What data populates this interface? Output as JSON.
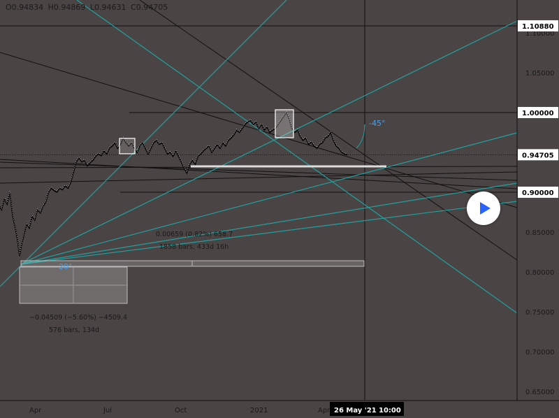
{
  "ohlc": {
    "o": "O0.94834",
    "h": "H0.94869",
    "l": "L0.94631",
    "c": "C0.94705"
  },
  "chart_data": {
    "type": "line",
    "price_range": [
      0.63,
      1.13
    ],
    "y_ticks": [
      "1.10000",
      "1.05000",
      "1.00000",
      "0.95000",
      "0.90000",
      "0.85000",
      "0.80000",
      "0.75000",
      "0.70000",
      "0.65000"
    ],
    "x_ticks": [
      "Apr",
      "Jul",
      "Oct",
      "2021",
      "Apr"
    ],
    "highlighted_prices": [
      {
        "label": "1.10880",
        "value": 1.1088,
        "style": "dark"
      },
      {
        "label": "1.00000",
        "value": 1.0,
        "style": "dark"
      },
      {
        "label": "0.94705",
        "value": 0.94705,
        "style": "dark"
      },
      {
        "label": "0.90000",
        "value": 0.9,
        "style": "dark"
      }
    ],
    "crosshair_time": "26 May '21",
    "crosshair_hour": "10:00",
    "price_series": [
      [
        0,
        0.885
      ],
      [
        4,
        0.878
      ],
      [
        8,
        0.892
      ],
      [
        12,
        0.885
      ],
      [
        16,
        0.9
      ],
      [
        20,
        0.87
      ],
      [
        24,
        0.855
      ],
      [
        27,
        0.84
      ],
      [
        30,
        0.82
      ],
      [
        33,
        0.835
      ],
      [
        36,
        0.845
      ],
      [
        40,
        0.86
      ],
      [
        44,
        0.855
      ],
      [
        48,
        0.87
      ],
      [
        52,
        0.865
      ],
      [
        56,
        0.878
      ],
      [
        60,
        0.874
      ],
      [
        64,
        0.882
      ],
      [
        68,
        0.888
      ],
      [
        72,
        0.9
      ],
      [
        76,
        0.905
      ],
      [
        80,
        0.902
      ],
      [
        84,
        0.9
      ],
      [
        88,
        0.905
      ],
      [
        92,
        0.903
      ],
      [
        96,
        0.908
      ],
      [
        100,
        0.905
      ],
      [
        104,
        0.912
      ],
      [
        108,
        0.925
      ],
      [
        112,
        0.938
      ],
      [
        116,
        0.943
      ],
      [
        120,
        0.938
      ],
      [
        124,
        0.94
      ],
      [
        128,
        0.933
      ],
      [
        132,
        0.937
      ],
      [
        136,
        0.94
      ],
      [
        140,
        0.945
      ],
      [
        144,
        0.948
      ],
      [
        148,
        0.946
      ],
      [
        152,
        0.952
      ],
      [
        156,
        0.948
      ],
      [
        160,
        0.955
      ],
      [
        164,
        0.958
      ],
      [
        168,
        0.962
      ],
      [
        172,
        0.955
      ],
      [
        176,
        0.96
      ],
      [
        180,
        0.968
      ],
      [
        184,
        0.962
      ],
      [
        188,
        0.958
      ],
      [
        192,
        0.962
      ],
      [
        196,
        0.955
      ],
      [
        200,
        0.95
      ],
      [
        204,
        0.958
      ],
      [
        208,
        0.962
      ],
      [
        212,
        0.955
      ],
      [
        216,
        0.948
      ],
      [
        220,
        0.955
      ],
      [
        224,
        0.962
      ],
      [
        228,
        0.965
      ],
      [
        232,
        0.96
      ],
      [
        236,
        0.962
      ],
      [
        240,
        0.955
      ],
      [
        244,
        0.948
      ],
      [
        248,
        0.95
      ],
      [
        252,
        0.945
      ],
      [
        256,
        0.952
      ],
      [
        260,
        0.945
      ],
      [
        264,
        0.938
      ],
      [
        268,
        0.93
      ],
      [
        272,
        0.924
      ],
      [
        276,
        0.935
      ],
      [
        280,
        0.94
      ],
      [
        284,
        0.935
      ],
      [
        288,
        0.945
      ],
      [
        292,
        0.948
      ],
      [
        296,
        0.952
      ],
      [
        300,
        0.955
      ],
      [
        304,
        0.958
      ],
      [
        308,
        0.95
      ],
      [
        312,
        0.955
      ],
      [
        316,
        0.96
      ],
      [
        320,
        0.955
      ],
      [
        324,
        0.962
      ],
      [
        328,
        0.958
      ],
      [
        332,
        0.965
      ],
      [
        336,
        0.968
      ],
      [
        340,
        0.972
      ],
      [
        344,
        0.978
      ],
      [
        348,
        0.975
      ],
      [
        352,
        0.98
      ],
      [
        356,
        0.985
      ],
      [
        360,
        0.988
      ],
      [
        364,
        0.99
      ],
      [
        368,
        0.985
      ],
      [
        372,
        0.988
      ],
      [
        376,
        0.98
      ],
      [
        380,
        0.985
      ],
      [
        384,
        0.978
      ],
      [
        388,
        0.982
      ],
      [
        392,
        0.975
      ],
      [
        396,
        0.978
      ],
      [
        400,
        0.98
      ],
      [
        404,
        0.985
      ],
      [
        408,
        0.99
      ],
      [
        412,
        0.995
      ],
      [
        416,
        1.0
      ],
      [
        420,
        0.992
      ],
      [
        424,
        0.98
      ],
      [
        428,
        0.975
      ],
      [
        432,
        0.978
      ],
      [
        436,
        0.97
      ],
      [
        440,
        0.965
      ],
      [
        444,
        0.968
      ],
      [
        448,
        0.96
      ],
      [
        452,
        0.963
      ],
      [
        456,
        0.958
      ],
      [
        460,
        0.955
      ],
      [
        464,
        0.96
      ],
      [
        468,
        0.962
      ],
      [
        472,
        0.968
      ],
      [
        476,
        0.97
      ],
      [
        480,
        0.975
      ],
      [
        484,
        0.965
      ],
      [
        488,
        0.958
      ],
      [
        492,
        0.955
      ],
      [
        496,
        0.95
      ],
      [
        500,
        0.948
      ],
      [
        504,
        0.947
      ]
    ],
    "measure_1": {
      "line1": "0.00659 (0.82%) 658.7",
      "line2": "1858 bars, 433d 16h"
    },
    "measure_2": {
      "line1": "−0.04509 (−5.60%) −4509.4",
      "line2": "576 bars, 134d"
    },
    "angle_labels": [
      "-45°",
      "20°"
    ]
  }
}
